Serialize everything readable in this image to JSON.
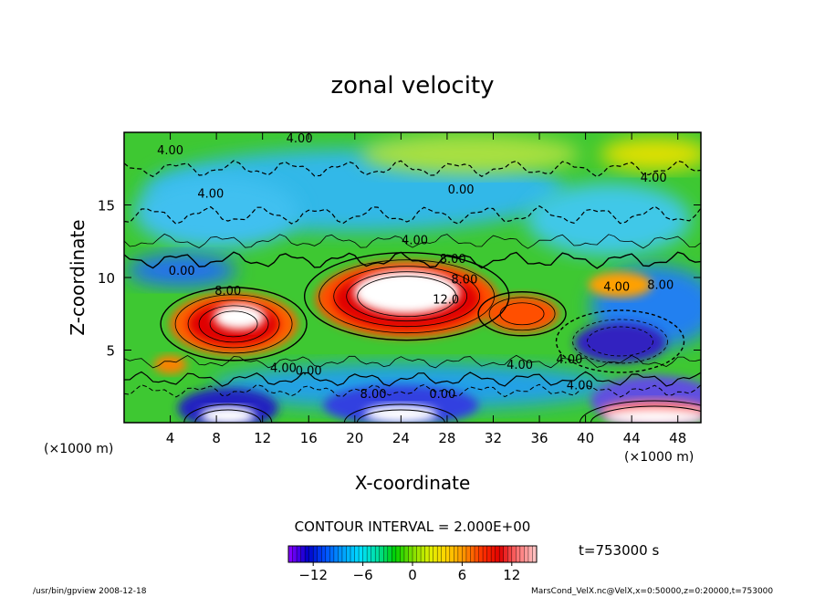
{
  "chart_data": {
    "type": "heatmap",
    "title": "zonal velocity",
    "xlabel": "X-coordinate",
    "ylabel": "Z-coordinate",
    "x_unit": "(×1000 m)",
    "x_unit_right": "(×1000 m)",
    "xlim": [
      0,
      50
    ],
    "ylim": [
      0,
      20
    ],
    "x_ticks": [
      "4",
      "8",
      "12",
      "16",
      "20",
      "24",
      "28",
      "32",
      "36",
      "40",
      "44",
      "48"
    ],
    "y_ticks": [
      "5",
      "10",
      "15"
    ],
    "contour_interval_text": "CONTOUR INTERVAL = 2.000E+00",
    "time_text": "t=753000 s",
    "colorbar": {
      "ticks": [
        "−12",
        "−6",
        "0",
        "6",
        "12"
      ],
      "min": -15,
      "max": 15,
      "colors": [
        "#8000ff",
        "#0000c8",
        "#0050ff",
        "#00a0ff",
        "#00e0ff",
        "#00e0a0",
        "#00d000",
        "#80e000",
        "#e0f000",
        "#ffd000",
        "#ff9000",
        "#ff3000",
        "#e00000",
        "#ff7070",
        "#ffc0c0"
      ]
    },
    "contour_labels": [
      "4.00",
      "4.00",
      "0.00",
      "4.00",
      "8.00",
      "0.00",
      "8.00",
      "4.00",
      "0.00",
      "12.0",
      "8.00",
      "4.00",
      "8.00",
      "4.00",
      "4.00",
      "4.00",
      "0.00",
      "8.00",
      "4.00",
      "4.00"
    ],
    "features": [
      {
        "kind": "max",
        "x": 9.5,
        "z": 7.0,
        "value": 14
      },
      {
        "kind": "max",
        "x": 24.5,
        "z": 8.8,
        "value": 16
      },
      {
        "kind": "max",
        "x": 34.5,
        "z": 7.5,
        "value": 10
      },
      {
        "kind": "min",
        "x": 44.0,
        "z": 5.8,
        "value": -12
      },
      {
        "kind": "max",
        "x": 9.0,
        "z": 0.5,
        "value": 16
      },
      {
        "kind": "max",
        "x": 24.0,
        "z": 0.5,
        "value": 16
      },
      {
        "kind": "max",
        "x": 46.0,
        "z": 0.8,
        "value": 16
      }
    ],
    "footer_left": "/usr/bin/gpview  2008-12-18",
    "footer_right": "MarsCond_VelX.nc@VelX,x=0:50000,z=0:20000,t=753000"
  }
}
